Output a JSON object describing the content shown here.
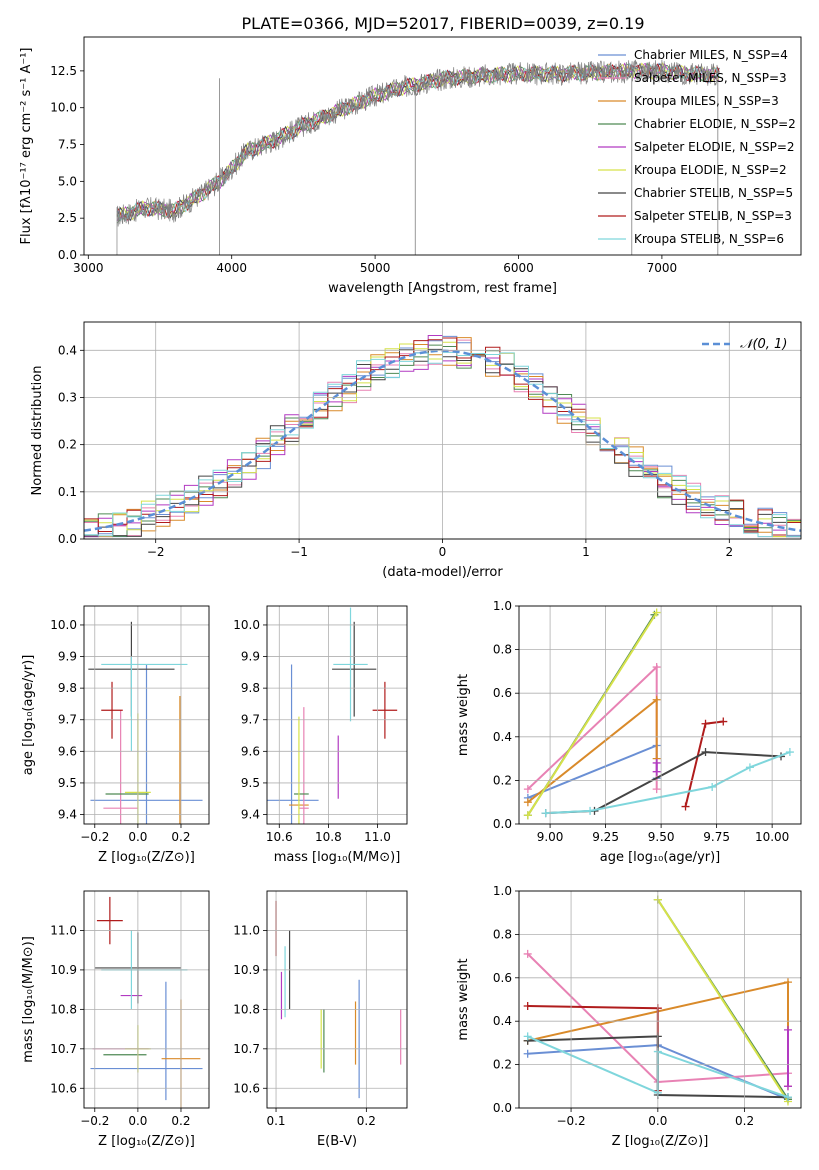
{
  "figure_title": "PLATE=0366, MJD=52017, FIBERID=0039, z=0.19",
  "chart_data": [
    {
      "id": "spectrum",
      "type": "line",
      "xlabel": "wavelength [Angstrom, rest frame]",
      "ylabel": "Flux [fλ10⁻¹⁷ erg cm⁻² s⁻¹ A⁻¹]",
      "xlim": [
        2970,
        7970
      ],
      "ylim": [
        0,
        14.8
      ],
      "xticks": [
        3000,
        4000,
        5000,
        6000,
        7000
      ],
      "yticks": [
        0.0,
        2.5,
        5.0,
        7.5,
        10.0,
        12.5
      ],
      "grid": false,
      "legend_placement": "right",
      "series": [
        {
          "name": "Chabrier MILES, N_SSP=4",
          "color": "#6a8fd4"
        },
        {
          "name": "Salpeter MILES, N_SSP=3",
          "color": "#e882b4"
        },
        {
          "name": "Kroupa MILES, N_SSP=3",
          "color": "#d98a2a"
        },
        {
          "name": "Chabrier ELODIE, N_SSP=2",
          "color": "#4f8a54"
        },
        {
          "name": "Salpeter ELODIE, N_SSP=2",
          "color": "#b23ac2"
        },
        {
          "name": "Kroupa ELODIE, N_SSP=2",
          "color": "#d6e24a"
        },
        {
          "name": "Chabrier STELIB, N_SSP=5",
          "color": "#444444"
        },
        {
          "name": "Salpeter STELIB, N_SSP=3",
          "color": "#b01c1c"
        },
        {
          "name": "Kroupa STELIB, N_SSP=6",
          "color": "#7fd6dc"
        }
      ],
      "data_color": "#808080",
      "continuum": {
        "x": [
          3200,
          3400,
          3600,
          3800,
          3950,
          4100,
          4300,
          4500,
          4800,
          5000,
          5200,
          5500,
          5800,
          6000,
          6300,
          6600,
          6800,
          7000,
          7200,
          7400
        ],
        "y": [
          2.6,
          3.2,
          3.0,
          4.2,
          5.3,
          7.0,
          7.8,
          8.8,
          10.0,
          10.8,
          11.4,
          12.0,
          12.2,
          12.3,
          12.3,
          12.4,
          12.5,
          12.5,
          12.3,
          12.2
        ]
      }
    },
    {
      "id": "residuals",
      "type": "line",
      "xlabel": "(data-model)/error",
      "ylabel": "Normed distribution",
      "xlim": [
        -2.5,
        2.5
      ],
      "ylim": [
        0,
        0.46
      ],
      "xticks": [
        -2,
        -1,
        0,
        1,
        2
      ],
      "yticks": [
        0.0,
        0.1,
        0.2,
        0.3,
        0.4
      ],
      "grid": true,
      "legend_placement": "top-right",
      "legend": "𝒩(0, 1)",
      "gaussian": {
        "mu": 0,
        "sigma": 1,
        "color": "#5b8fd6"
      }
    },
    {
      "id": "age-vs-Z",
      "type": "scatter",
      "xlabel": "Z [log₁₀(Z/Z⊙)]",
      "ylabel": "age  [log₁₀(age/yr)]",
      "xlim": [
        -0.25,
        0.33
      ],
      "ylim": [
        9.37,
        10.06
      ],
      "xticks": [
        -0.2,
        0.0,
        0.2
      ],
      "yticks": [
        9.4,
        9.5,
        9.6,
        9.7,
        9.8,
        9.9,
        10.0
      ],
      "grid": true,
      "points": [
        {
          "x": 0.04,
          "y": 9.445,
          "xerr": 0.26,
          "yerr": 0.43,
          "color": "#6a8fd4"
        },
        {
          "x": 0.195,
          "y": 9.435,
          "xerr": 0.0,
          "yerr": 0.34,
          "color": "#d98a2a"
        },
        {
          "x": -0.08,
          "y": 9.42,
          "xerr": 0.08,
          "yerr": 0.31,
          "color": "#e882b4"
        },
        {
          "x": -0.05,
          "y": 9.465,
          "xerr": 0.1,
          "yerr": 0.0,
          "color": "#4f8a54"
        },
        {
          "x": 0.0,
          "y": 9.47,
          "xerr": 0.06,
          "yerr": 0.25,
          "color": "#d6e24a"
        },
        {
          "x": -0.12,
          "y": 9.73,
          "xerr": 0.05,
          "yerr": 0.09,
          "color": "#b01c1c"
        },
        {
          "x": -0.03,
          "y": 9.86,
          "xerr": 0.2,
          "yerr": 0.15,
          "color": "#444444"
        },
        {
          "x": 0.03,
          "y": 9.875,
          "xerr": 0.2,
          "yerr": 0.0,
          "color": "#7fd6dc"
        },
        {
          "x": -0.03,
          "y": 9.75,
          "xerr": 0.0,
          "yerr": 0.15,
          "color": "#7fd6dc"
        }
      ]
    },
    {
      "id": "age-vs-mass",
      "type": "scatter",
      "xlabel": "mass [log₁₀(M/M⊙)]",
      "ylabel": "",
      "xlim": [
        10.55,
        11.12
      ],
      "ylim": [
        9.37,
        10.06
      ],
      "xticks": [
        10.6,
        10.8,
        11.0
      ],
      "yticks": [
        9.4,
        9.5,
        9.6,
        9.7,
        9.8,
        9.9,
        10.0
      ],
      "grid": true,
      "points": [
        {
          "x": 10.65,
          "y": 9.445,
          "xerr": 0.11,
          "yerr": 0.43,
          "color": "#6a8fd4"
        },
        {
          "x": 10.68,
          "y": 9.43,
          "xerr": 0.04,
          "yerr": 0.0,
          "color": "#d98a2a"
        },
        {
          "x": 10.7,
          "y": 9.42,
          "xerr": 0.02,
          "yerr": 0.32,
          "color": "#e882b4"
        },
        {
          "x": 10.69,
          "y": 9.465,
          "xerr": 0.03,
          "yerr": 0.0,
          "color": "#4f8a54"
        },
        {
          "x": 10.68,
          "y": 9.5,
          "xerr": 0.0,
          "yerr": 0.21,
          "color": "#d6e24a"
        },
        {
          "x": 10.84,
          "y": 9.55,
          "xerr": 0.0,
          "yerr": 0.1,
          "color": "#b23ac2"
        },
        {
          "x": 11.03,
          "y": 9.73,
          "xerr": 0.05,
          "yerr": 0.09,
          "color": "#b01c1c"
        },
        {
          "x": 10.905,
          "y": 9.86,
          "xerr": 0.09,
          "yerr": 0.15,
          "color": "#444444"
        },
        {
          "x": 10.89,
          "y": 9.875,
          "xerr": 0.07,
          "yerr": 0.18,
          "color": "#7fd6dc"
        }
      ]
    },
    {
      "id": "weight-vs-age",
      "type": "line",
      "xlabel": "age  [log₁₀(age/yr)]",
      "ylabel": "mass weight",
      "xlim": [
        8.86,
        10.13
      ],
      "ylim": [
        0,
        1.0
      ],
      "xticks": [
        9.0,
        9.25,
        9.5,
        9.75,
        10.0
      ],
      "yticks": [
        0.0,
        0.2,
        0.4,
        0.6,
        0.8,
        1.0
      ],
      "grid": true,
      "series": [
        {
          "color": "#6a8fd4",
          "x": [
            8.9,
            9.48,
            9.48
          ],
          "y": [
            0.12,
            0.36,
            0.21
          ]
        },
        {
          "color": "#e882b4",
          "x": [
            8.9,
            9.48,
            9.48
          ],
          "y": [
            0.16,
            0.72,
            0.16
          ]
        },
        {
          "color": "#d98a2a",
          "x": [
            8.9,
            9.48,
            9.48
          ],
          "y": [
            0.1,
            0.57,
            0.3
          ]
        },
        {
          "color": "#4f8a54",
          "x": [
            8.9,
            9.47
          ],
          "y": [
            0.04,
            0.96
          ]
        },
        {
          "color": "#d6e24a",
          "x": [
            8.9,
            9.48
          ],
          "y": [
            0.04,
            0.97
          ]
        },
        {
          "color": "#b23ac2",
          "x": [
            9.48,
            9.48
          ],
          "y": [
            0.28,
            0.24
          ]
        },
        {
          "color": "#b01c1c",
          "x": [
            9.61,
            9.7,
            9.78
          ],
          "y": [
            0.08,
            0.46,
            0.47
          ]
        },
        {
          "color": "#444444",
          "x": [
            8.98,
            9.2,
            9.7,
            10.04
          ],
          "y": [
            0.05,
            0.06,
            0.33,
            0.31
          ]
        },
        {
          "color": "#7fd6dc",
          "x": [
            8.98,
            9.18,
            9.73,
            9.9,
            10.08
          ],
          "y": [
            0.05,
            0.06,
            0.17,
            0.26,
            0.33
          ]
        }
      ]
    },
    {
      "id": "mass-vs-Z",
      "type": "scatter",
      "xlabel": "Z [log₁₀(Z/Z⊙)]",
      "ylabel": "mass [log₁₀(M/M⊙)]",
      "xlim": [
        -0.25,
        0.33
      ],
      "ylim": [
        10.55,
        11.1
      ],
      "xticks": [
        -0.2,
        0.0,
        0.2
      ],
      "yticks": [
        10.6,
        10.7,
        10.8,
        10.9,
        11.0
      ],
      "grid": true,
      "points": [
        {
          "x": 0.04,
          "y": 10.65,
          "xerr": 0.26,
          "yerr": 0.0,
          "color": "#6a8fd4"
        },
        {
          "x": 0.13,
          "y": 10.72,
          "xerr": 0.0,
          "yerr": 0.15,
          "color": "#6a8fd4"
        },
        {
          "x": 0.2,
          "y": 10.675,
          "xerr": 0.09,
          "yerr": 0.15,
          "color": "#d98a2a"
        },
        {
          "x": -0.08,
          "y": 10.7,
          "xerr": 0.13,
          "yerr": 0.0,
          "color": "#e882b4"
        },
        {
          "x": -0.06,
          "y": 10.685,
          "xerr": 0.1,
          "yerr": 0.0,
          "color": "#4f8a54"
        },
        {
          "x": 0.0,
          "y": 10.7,
          "xerr": 0.06,
          "yerr": 0.06,
          "color": "#d6e24a"
        },
        {
          "x": -0.03,
          "y": 10.835,
          "xerr": 0.05,
          "yerr": 0.0,
          "color": "#b23ac2"
        },
        {
          "x": -0.13,
          "y": 11.025,
          "xerr": 0.06,
          "yerr": 0.06,
          "color": "#b01c1c"
        },
        {
          "x": 0.0,
          "y": 10.905,
          "xerr": 0.2,
          "yerr": 0.09,
          "color": "#444444"
        },
        {
          "x": 0.03,
          "y": 10.9,
          "xerr": 0.2,
          "yerr": 0.0,
          "color": "#7fd6dc"
        },
        {
          "x": -0.03,
          "y": 10.9,
          "xerr": 0.0,
          "yerr": 0.1,
          "color": "#7fd6dc"
        }
      ]
    },
    {
      "id": "mass-vs-ebv",
      "type": "scatter",
      "xlabel": "E(B-V)",
      "ylabel": "",
      "xlim": [
        0.09,
        0.245
      ],
      "ylim": [
        10.55,
        11.1
      ],
      "xticks": [
        0.1,
        0.2
      ],
      "yticks": [
        10.6,
        10.7,
        10.8,
        10.9,
        11.0
      ],
      "grid": true,
      "points": [
        {
          "x": 0.1,
          "y": 11.005,
          "xerr": 0.0,
          "yerr": 0.07,
          "color": "#b01c1c"
        },
        {
          "x": 0.106,
          "y": 10.835,
          "xerr": 0.0,
          "yerr": 0.06,
          "color": "#b23ac2"
        },
        {
          "x": 0.11,
          "y": 10.87,
          "xerr": 0.0,
          "yerr": 0.09,
          "color": "#7fd6dc"
        },
        {
          "x": 0.115,
          "y": 10.9,
          "xerr": 0.0,
          "yerr": 0.1,
          "color": "#444444"
        },
        {
          "x": 0.153,
          "y": 10.72,
          "xerr": 0.0,
          "yerr": 0.08,
          "color": "#4f8a54"
        },
        {
          "x": 0.15,
          "y": 10.725,
          "xerr": 0.0,
          "yerr": 0.075,
          "color": "#d6e24a"
        },
        {
          "x": 0.188,
          "y": 10.74,
          "xerr": 0.0,
          "yerr": 0.08,
          "color": "#d98a2a"
        },
        {
          "x": 0.192,
          "y": 10.725,
          "xerr": 0.0,
          "yerr": 0.15,
          "color": "#6a8fd4"
        },
        {
          "x": 0.238,
          "y": 10.73,
          "xerr": 0.0,
          "yerr": 0.07,
          "color": "#e882b4"
        }
      ]
    },
    {
      "id": "weight-vs-Z",
      "type": "line",
      "xlabel": "Z [log₁₀(Z/Z⊙)]",
      "ylabel": "mass weight",
      "xlim": [
        -0.32,
        0.33
      ],
      "ylim": [
        0,
        1.0
      ],
      "xticks": [
        -0.2,
        0.0,
        0.2
      ],
      "yticks": [
        0.0,
        0.2,
        0.4,
        0.6,
        0.8,
        1.0
      ],
      "grid": true,
      "series": [
        {
          "color": "#6a8fd4",
          "x": [
            -0.3,
            0.0,
            0.3
          ],
          "y": [
            0.25,
            0.29,
            0.04
          ]
        },
        {
          "color": "#e882b4",
          "x": [
            -0.3,
            0.0,
            0.3
          ],
          "y": [
            0.71,
            0.12,
            0.16
          ]
        },
        {
          "color": "#d98a2a",
          "x": [
            -0.3,
            0.3,
            0.3
          ],
          "y": [
            0.31,
            0.58,
            0.1
          ]
        },
        {
          "color": "#4f8a54",
          "x": [
            0.0,
            0.3
          ],
          "y": [
            0.96,
            0.04
          ]
        },
        {
          "color": "#d6e24a",
          "x": [
            0.0,
            0.3
          ],
          "y": [
            0.96,
            0.03
          ]
        },
        {
          "color": "#b01c1c",
          "x": [
            -0.3,
            0.0,
            0.0
          ],
          "y": [
            0.47,
            0.46,
            0.08
          ]
        },
        {
          "color": "#444444",
          "x": [
            -0.3,
            0.0,
            0.0,
            0.3
          ],
          "y": [
            0.31,
            0.33,
            0.06,
            0.05
          ]
        },
        {
          "color": "#7fd6dc",
          "x": [
            -0.3,
            0.0,
            0.0,
            0.3
          ],
          "y": [
            0.33,
            0.07,
            0.26,
            0.05
          ]
        },
        {
          "color": "#b23ac2",
          "x": [
            0.3,
            0.3
          ],
          "y": [
            0.36,
            0.1
          ]
        }
      ]
    }
  ]
}
